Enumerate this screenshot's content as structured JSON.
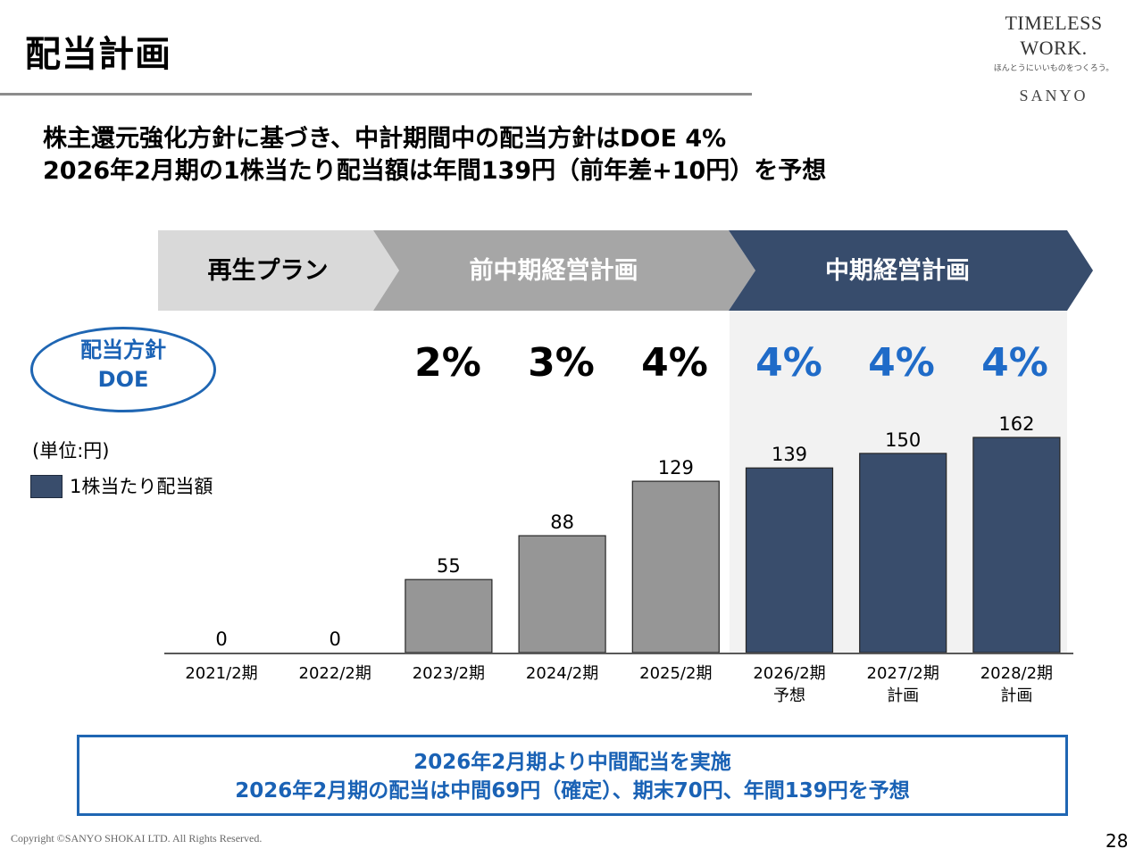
{
  "slide": {
    "title": "配当計画",
    "page_number": "28",
    "copyright": "Copyright ©SANYO SHOKAI LTD. All Rights Reserved."
  },
  "logo": {
    "main": "TIMELESS WORK.",
    "tagline": "ほんとうにいいものをつくろう。",
    "brand": "SANYO"
  },
  "headline": {
    "line1": "株主還元強化方針に基づき、中計期間中の配当方針はDOE 4%",
    "line2": "2026年2月期の1株当たり配当額は年間139円（前年差+10円）を予想"
  },
  "phases": [
    {
      "label": "再生プラン",
      "color": "#d9d9d9"
    },
    {
      "label": "前中期経営計画",
      "color": "#a6a6a6"
    },
    {
      "label": "中期経営計画",
      "color": "#374c6c"
    }
  ],
  "doe_policy": {
    "badge_line1": "配当方針",
    "badge_line2": "DOE",
    "values": [
      "2%",
      "3%",
      "4%",
      "4%",
      "4%",
      "4%"
    ],
    "past_color": "#000000",
    "plan_color": "#1f6bc8"
  },
  "legend": {
    "unit": "(単位:円)",
    "series_label": "1株当たり配当額"
  },
  "chart_data": {
    "type": "bar",
    "title": "",
    "xlabel": "",
    "ylabel": "1株当たり配当額 (円)",
    "unit": "円",
    "categories": [
      [
        "2021/2期"
      ],
      [
        "2022/2期"
      ],
      [
        "2023/2期"
      ],
      [
        "2024/2期"
      ],
      [
        "2025/2期"
      ],
      [
        "2026/2期",
        "予想"
      ],
      [
        "2027/2期",
        "計画"
      ],
      [
        "2028/2期",
        "計画"
      ]
    ],
    "series": [
      {
        "name": "1株当たり配当額",
        "values": [
          0,
          0,
          55,
          88,
          129,
          139,
          150,
          162
        ],
        "colors": [
          "#969696",
          "#969696",
          "#969696",
          "#969696",
          "#969696",
          "#394d6c",
          "#394d6c",
          "#394d6c"
        ]
      }
    ],
    "data_labels": [
      "0",
      "0",
      "55",
      "88",
      "129",
      "139",
      "150",
      "162"
    ],
    "ylim": [
      0,
      162
    ],
    "grid": false,
    "legend_position": "left"
  },
  "note": {
    "line1": "2026年2月期より中間配当を実施",
    "line2": "2026年2月期の配当は中間69円（確定）、期末70円、年間139円を予想"
  }
}
